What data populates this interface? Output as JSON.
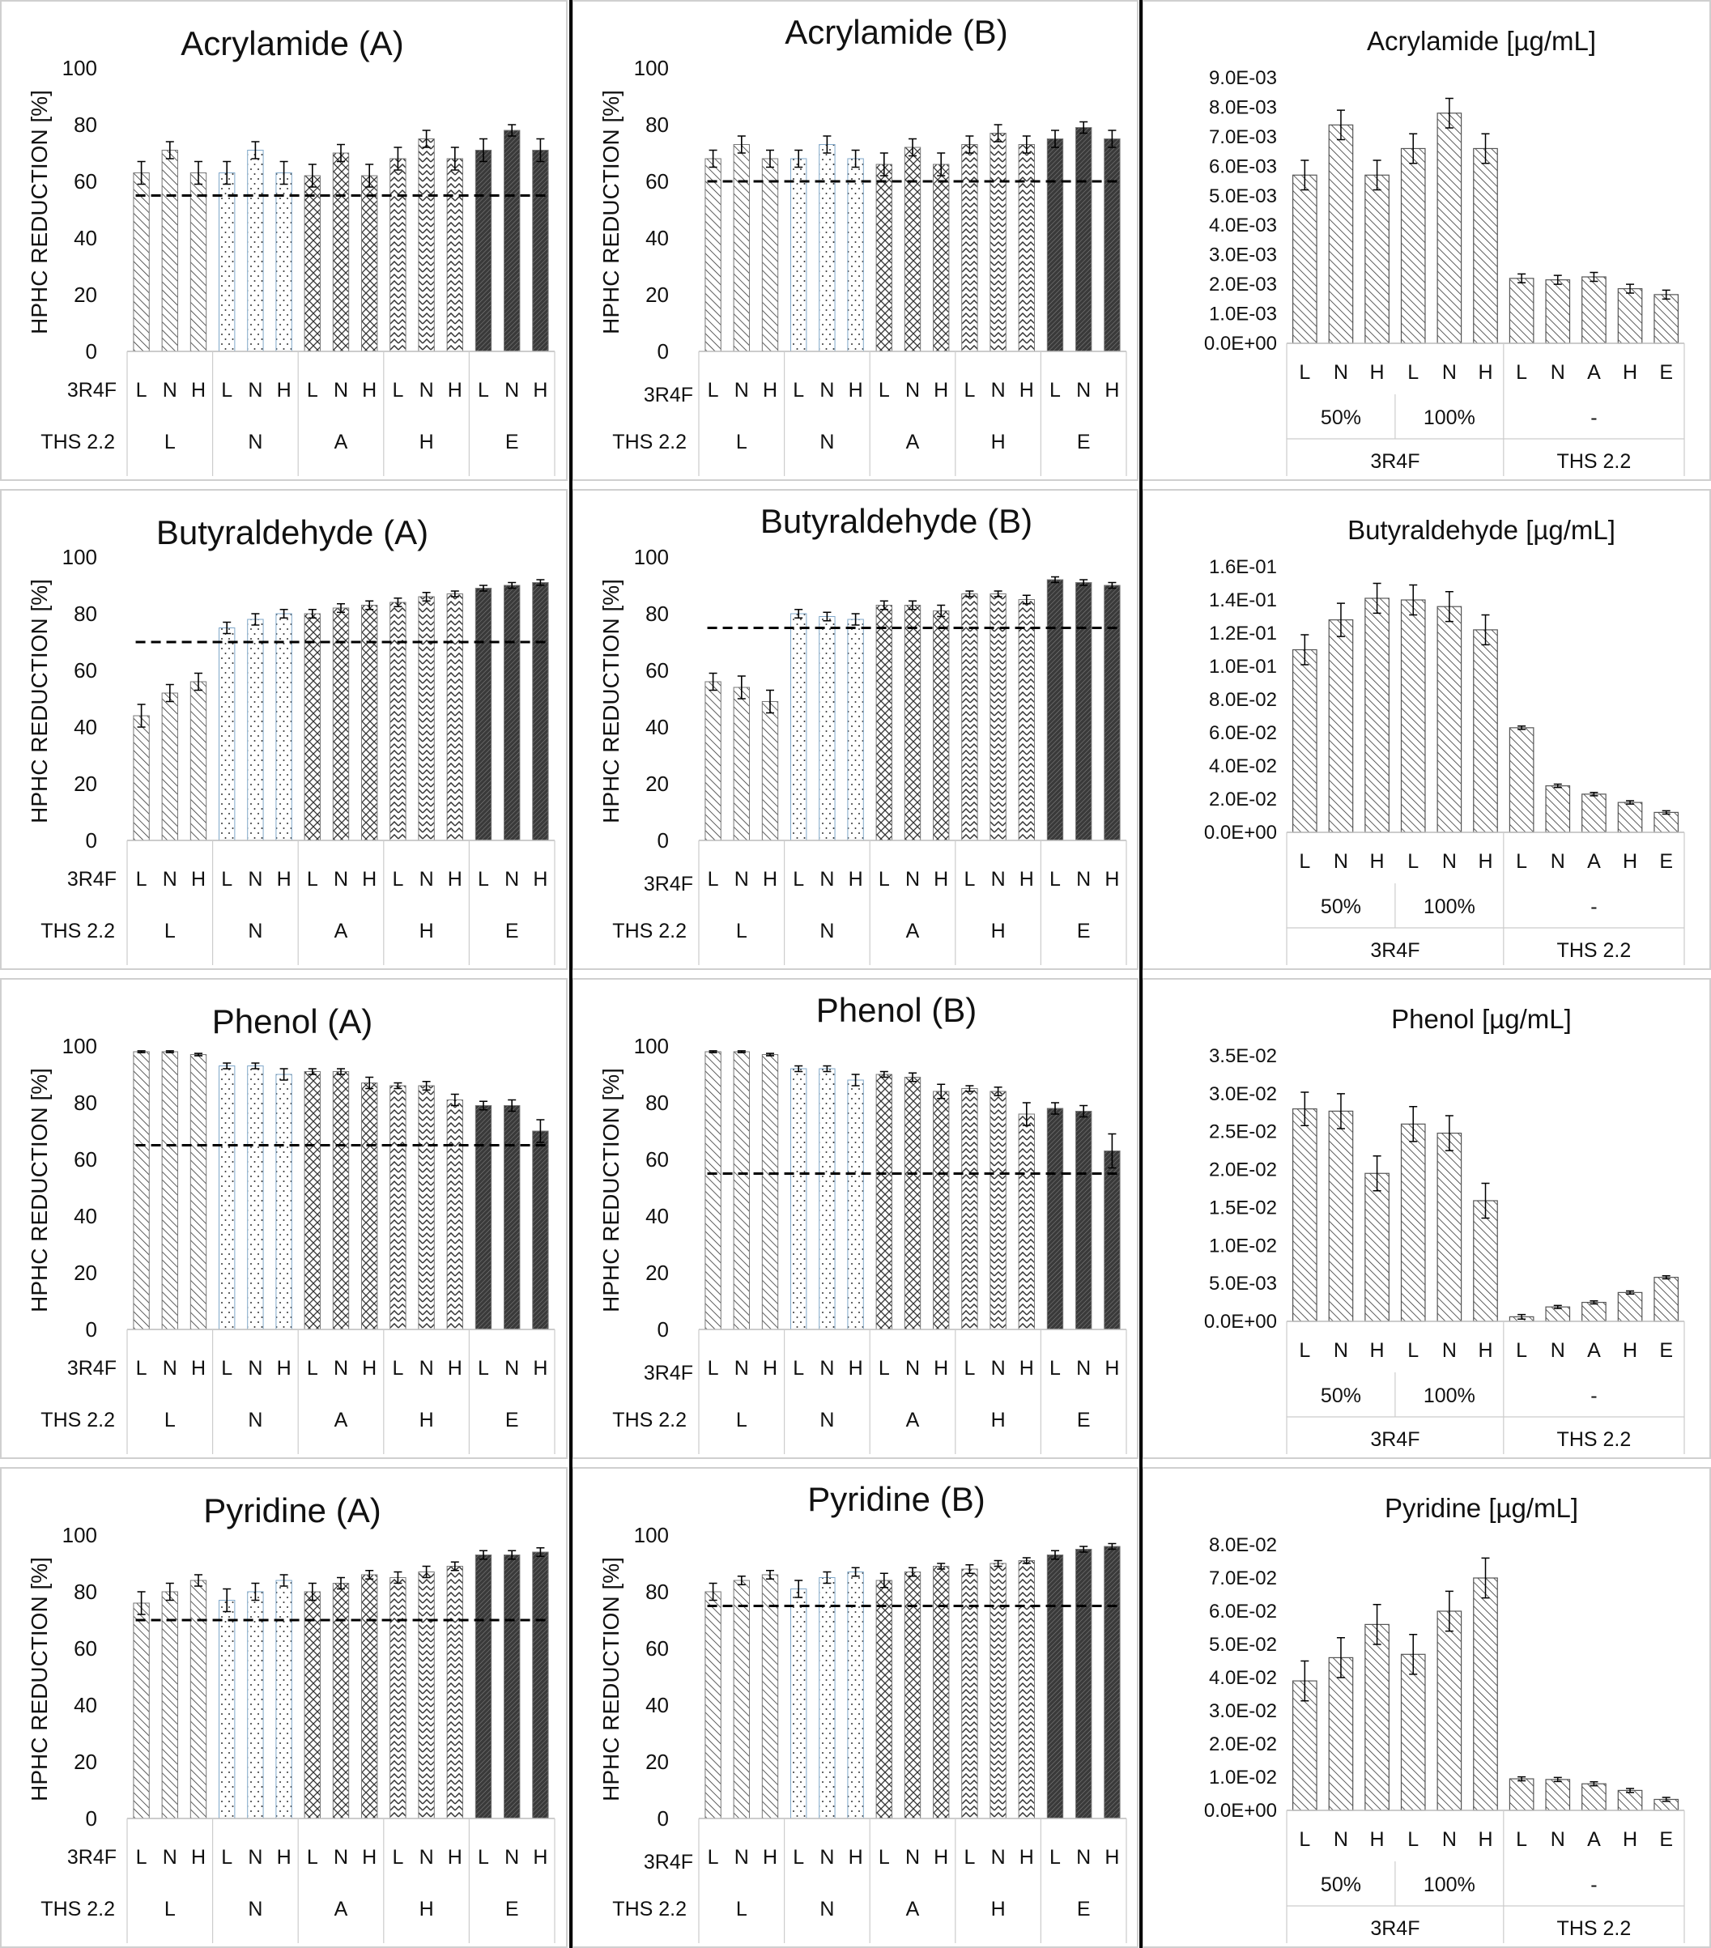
{
  "chart_data": [
    {
      "type": "bar",
      "kind": "reduction",
      "title": "Acrylamide (A)",
      "ylabel": "HPHC REDUCTION [%]",
      "ylim": [
        0,
        100
      ],
      "yticks": [
        "0",
        "20",
        "40",
        "60",
        "80",
        "100"
      ],
      "row1_label": "3R4F",
      "row2_label": "THS 2.2",
      "ths_groups": [
        "L",
        "N",
        "A",
        "H",
        "E"
      ],
      "r4f_levels": [
        "L",
        "N",
        "H"
      ],
      "values": [
        63,
        71,
        63,
        63,
        71,
        63,
        62,
        70,
        62,
        68,
        75,
        68,
        71,
        78,
        71
      ],
      "errors": [
        4,
        3,
        4,
        4,
        3,
        4,
        4,
        3,
        4,
        4,
        3,
        4,
        4,
        2,
        4
      ],
      "threshold": 55
    },
    {
      "type": "bar",
      "kind": "reduction",
      "title": "Acrylamide (B)",
      "ylabel": "HPHC REDUCTION [%]",
      "ylim": [
        0,
        100
      ],
      "yticks": [
        "0",
        "20",
        "40",
        "60",
        "80",
        "100"
      ],
      "row1_label": "3R4F",
      "row2_label": "THS 2.2",
      "ths_groups": [
        "L",
        "N",
        "A",
        "H",
        "E"
      ],
      "r4f_levels": [
        "L",
        "N",
        "H"
      ],
      "values": [
        68,
        73,
        68,
        68,
        73,
        68,
        66,
        72,
        66,
        73,
        77,
        73,
        75,
        79,
        75
      ],
      "errors": [
        3,
        3,
        3,
        3,
        3,
        3,
        4,
        3,
        4,
        3,
        3,
        3,
        3,
        2,
        3
      ],
      "threshold": 60
    },
    {
      "type": "bar",
      "kind": "concentration",
      "title": "Acrylamide [µg/mL]",
      "ylim": [
        0,
        0.009
      ],
      "yticks": [
        "0.0E+00",
        "1.0E-03",
        "2.0E-03",
        "3.0E-03",
        "4.0E-03",
        "5.0E-03",
        "6.0E-03",
        "7.0E-03",
        "8.0E-03",
        "9.0E-03"
      ],
      "categories": [
        "L",
        "N",
        "H",
        "L",
        "N",
        "H",
        "L",
        "N",
        "A",
        "H",
        "E"
      ],
      "subgroups": [
        "50%",
        "100%",
        "-"
      ],
      "groups": [
        "3R4F",
        "THS 2.2"
      ],
      "values": [
        0.0057,
        0.0074,
        0.0057,
        0.0066,
        0.0078,
        0.0066,
        0.0022,
        0.00215,
        0.00225,
        0.00185,
        0.00165
      ],
      "errors": [
        0.0005,
        0.0005,
        0.0005,
        0.0005,
        0.0005,
        0.0005,
        0.00015,
        0.00015,
        0.00015,
        0.00015,
        0.00015
      ]
    },
    {
      "type": "bar",
      "kind": "reduction",
      "title": "Butyraldehyde (A)",
      "ylabel": "HPHC REDUCTION [%]",
      "ylim": [
        0,
        100
      ],
      "yticks": [
        "0",
        "20",
        "40",
        "60",
        "80",
        "100"
      ],
      "row1_label": "3R4F",
      "row2_label": "THS 2.2",
      "ths_groups": [
        "L",
        "N",
        "A",
        "H",
        "E"
      ],
      "r4f_levels": [
        "L",
        "N",
        "H"
      ],
      "values": [
        44,
        52,
        56,
        75,
        78,
        80,
        80,
        82,
        83,
        84,
        86,
        87,
        89,
        90,
        91
      ],
      "errors": [
        4,
        3,
        3,
        2,
        2,
        1.5,
        1.5,
        1.5,
        1.5,
        1.5,
        1.5,
        1,
        1,
        1,
        1
      ],
      "threshold": 70
    },
    {
      "type": "bar",
      "kind": "reduction",
      "title": "Butyraldehyde (B)",
      "ylabel": "HPHC REDUCTION [%]",
      "ylim": [
        0,
        100
      ],
      "yticks": [
        "0",
        "20",
        "40",
        "60",
        "80",
        "100"
      ],
      "row1_label": "3R4F",
      "row2_label": "THS 2.2",
      "ths_groups": [
        "L",
        "N",
        "A",
        "H",
        "E"
      ],
      "r4f_levels": [
        "L",
        "N",
        "H"
      ],
      "values": [
        56,
        54,
        49,
        80,
        79,
        78,
        83,
        83,
        81,
        87,
        87,
        85,
        92,
        91,
        90
      ],
      "errors": [
        3,
        4,
        4,
        1.5,
        1.5,
        2,
        1.5,
        1.5,
        2,
        1,
        1,
        1.5,
        1,
        1,
        1
      ],
      "threshold": 75
    },
    {
      "type": "bar",
      "kind": "concentration",
      "title": "Butyraldehyde [µg/mL]",
      "ylim": [
        0,
        0.16
      ],
      "yticks": [
        "0.0E+00",
        "2.0E-02",
        "4.0E-02",
        "6.0E-02",
        "8.0E-02",
        "1.0E-01",
        "1.2E-01",
        "1.4E-01",
        "1.6E-01"
      ],
      "categories": [
        "L",
        "N",
        "H",
        "L",
        "N",
        "H",
        "L",
        "N",
        "A",
        "H",
        "E"
      ],
      "subgroups": [
        "50%",
        "100%",
        "-"
      ],
      "groups": [
        "3R4F",
        "THS 2.2"
      ],
      "values": [
        0.11,
        0.128,
        0.141,
        0.14,
        0.136,
        0.122,
        0.063,
        0.028,
        0.023,
        0.018,
        0.012
      ],
      "errors": [
        0.009,
        0.01,
        0.009,
        0.009,
        0.009,
        0.009,
        0.001,
        0.001,
        0.001,
        0.001,
        0.001
      ]
    },
    {
      "type": "bar",
      "kind": "reduction",
      "title": "Phenol (A)",
      "ylabel": "HPHC REDUCTION [%]",
      "ylim": [
        0,
        100
      ],
      "yticks": [
        "0",
        "20",
        "40",
        "60",
        "80",
        "100"
      ],
      "row1_label": "3R4F",
      "row2_label": "THS 2.2",
      "ths_groups": [
        "L",
        "N",
        "A",
        "H",
        "E"
      ],
      "r4f_levels": [
        "L",
        "N",
        "H"
      ],
      "values": [
        98,
        98,
        97,
        93,
        93,
        90,
        91,
        91,
        87,
        86,
        86,
        81,
        79,
        79,
        70
      ],
      "errors": [
        0.3,
        0.3,
        0.4,
        1,
        1,
        2,
        1,
        1,
        2,
        1,
        1.5,
        2,
        1.5,
        2,
        4
      ],
      "threshold": 65
    },
    {
      "type": "bar",
      "kind": "reduction",
      "title": "Phenol (B)",
      "ylabel": "HPHC REDUCTION [%]",
      "ylim": [
        0,
        100
      ],
      "yticks": [
        "0",
        "20",
        "40",
        "60",
        "80",
        "100"
      ],
      "row1_label": "3R4F",
      "row2_label": "THS 2.2",
      "ths_groups": [
        "L",
        "N",
        "A",
        "H",
        "E"
      ],
      "r4f_levels": [
        "L",
        "N",
        "H"
      ],
      "values": [
        98,
        98,
        97,
        92,
        92,
        88,
        90,
        89,
        84,
        85,
        84,
        76,
        78,
        77,
        63
      ],
      "errors": [
        0.3,
        0.3,
        0.4,
        1,
        1,
        2,
        1,
        1.5,
        2.5,
        1,
        1.5,
        4,
        2,
        2,
        6
      ],
      "threshold": 55
    },
    {
      "type": "bar",
      "kind": "concentration",
      "title": "Phenol [µg/mL]",
      "ylim": [
        0,
        0.035
      ],
      "yticks": [
        "0.0E+00",
        "5.0E-03",
        "1.0E-02",
        "1.5E-02",
        "2.0E-02",
        "2.5E-02",
        "3.0E-02",
        "3.5E-02"
      ],
      "categories": [
        "L",
        "N",
        "H",
        "L",
        "N",
        "H",
        "L",
        "N",
        "A",
        "H",
        "E"
      ],
      "subgroups": [
        "50%",
        "100%",
        "-"
      ],
      "groups": [
        "3R4F",
        "THS 2.2"
      ],
      "values": [
        0.028,
        0.0277,
        0.0195,
        0.026,
        0.0248,
        0.0159,
        0.0006,
        0.0019,
        0.0025,
        0.0038,
        0.0058
      ],
      "errors": [
        0.0022,
        0.0023,
        0.0023,
        0.0023,
        0.0023,
        0.0023,
        0.0003,
        0.0002,
        0.0002,
        0.0002,
        0.0002
      ]
    },
    {
      "type": "bar",
      "kind": "reduction",
      "title": "Pyridine (A)",
      "ylabel": "HPHC REDUCTION [%]",
      "ylim": [
        0,
        100
      ],
      "yticks": [
        "0",
        "20",
        "40",
        "60",
        "80",
        "100"
      ],
      "row1_label": "3R4F",
      "row2_label": "THS 2.2",
      "ths_groups": [
        "L",
        "N",
        "A",
        "H",
        "E"
      ],
      "r4f_levels": [
        "L",
        "N",
        "H"
      ],
      "values": [
        76,
        80,
        84,
        77,
        80,
        84,
        80,
        83,
        86,
        85,
        87,
        89,
        93,
        93,
        94
      ],
      "errors": [
        4,
        3,
        2,
        4,
        3,
        2,
        3,
        2,
        1.5,
        2,
        2,
        1.5,
        1.5,
        1.5,
        1.5
      ],
      "threshold": 70
    },
    {
      "type": "bar",
      "kind": "reduction",
      "title": "Pyridine (B)",
      "ylabel": "HPHC REDUCTION [%]",
      "ylim": [
        0,
        100
      ],
      "yticks": [
        "0",
        "20",
        "40",
        "60",
        "80",
        "100"
      ],
      "row1_label": "3R4F",
      "row2_label": "THS 2.2",
      "ths_groups": [
        "L",
        "N",
        "A",
        "H",
        "E"
      ],
      "r4f_levels": [
        "L",
        "N",
        "H"
      ],
      "values": [
        80,
        84,
        86,
        81,
        85,
        87,
        84,
        87,
        89,
        88,
        90,
        91,
        93,
        95,
        96
      ],
      "errors": [
        3,
        1.5,
        1.5,
        3,
        2,
        1.5,
        2.5,
        1.5,
        1,
        1.5,
        1,
        1,
        1.5,
        1,
        1
      ],
      "threshold": 75
    },
    {
      "type": "bar",
      "kind": "concentration",
      "title": "Pyridine [µg/mL]",
      "ylim": [
        0,
        0.08
      ],
      "yticks": [
        "0.0E+00",
        "1.0E-02",
        "2.0E-02",
        "3.0E-02",
        "4.0E-02",
        "5.0E-02",
        "6.0E-02",
        "7.0E-02",
        "8.0E-02"
      ],
      "categories": [
        "L",
        "N",
        "H",
        "L",
        "N",
        "H",
        "L",
        "N",
        "A",
        "H",
        "E"
      ],
      "subgroups": [
        "50%",
        "100%",
        "-"
      ],
      "groups": [
        "3R4F",
        "THS 2.2"
      ],
      "values": [
        0.039,
        0.046,
        0.056,
        0.047,
        0.06,
        0.07,
        0.0095,
        0.0093,
        0.008,
        0.006,
        0.0033
      ],
      "errors": [
        0.006,
        0.006,
        0.006,
        0.006,
        0.006,
        0.006,
        0.0006,
        0.0006,
        0.0006,
        0.0006,
        0.0006
      ]
    }
  ]
}
